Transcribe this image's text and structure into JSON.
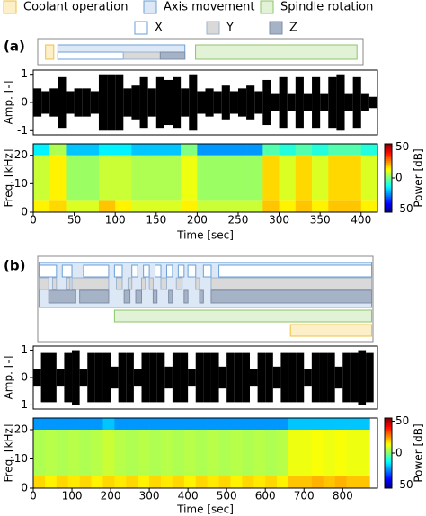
{
  "chart_data": {
    "type": "timeline-signal",
    "legend": [
      {
        "name": "Coolant operation",
        "color": "#fdf0c8",
        "border": "#f0c040",
        "text_color": "#c89a10"
      },
      {
        "name": "Axis movement",
        "color": "#dde8f6",
        "border": "#6a9fd8",
        "text_color": "#3a70c0"
      },
      {
        "name": "Spindle rotation",
        "color": "#e2f2d6",
        "border": "#8cc56a",
        "text_color": "#5a9a3a"
      },
      {
        "name": "X",
        "color": "#ffffff",
        "border": "#6a9fd8",
        "text_color": "#3a70c0"
      },
      {
        "name": "Y",
        "color": "#d9d9d9",
        "border": "#9fb3cc",
        "text_color": "#3a70c0"
      },
      {
        "name": "Z",
        "color": "#a6b2c6",
        "border": "#7f8fa8",
        "text_color": "#3a70c0"
      }
    ],
    "panels": [
      {
        "label": "(a)",
        "xlim": [
          0,
          420
        ],
        "xticks": [
          0,
          50,
          100,
          150,
          200,
          250,
          300,
          350,
          400
        ],
        "xlabel": "Time [sec]",
        "timeline": [
          [
            [
              15,
              25
            ]
          ],
          [
            [
              30,
              185
            ]
          ],
          [
            [
              198,
              395
            ]
          ],
          [
            [
              30,
              110
            ]
          ],
          [
            [
              110,
              155
            ]
          ],
          [
            [
              155,
              185
            ]
          ]
        ],
        "amplitude": {
          "ylabel": "Amp. [-]",
          "ylim": [
            -1.15,
            1.15
          ],
          "yticks": [
            -1,
            0,
            1
          ],
          "x": [
            0,
            10,
            20,
            30,
            40,
            50,
            60,
            70,
            80,
            90,
            100,
            110,
            120,
            130,
            140,
            150,
            160,
            170,
            180,
            190,
            200,
            210,
            220,
            230,
            240,
            250,
            260,
            270,
            280,
            290,
            300,
            310,
            320,
            330,
            340,
            350,
            360,
            370,
            380,
            390,
            400,
            410,
            420
          ],
          "values": [
            0.5,
            0.4,
            0.5,
            0.9,
            0.4,
            0.5,
            0.5,
            0.4,
            1,
            1,
            1,
            0.5,
            0.6,
            0.9,
            0.5,
            0.9,
            0.8,
            0.9,
            0.5,
            1,
            0.4,
            0.5,
            0.4,
            0.6,
            0.4,
            0.5,
            0.6,
            0.4,
            0.8,
            0.3,
            0.9,
            0.3,
            0.9,
            0.3,
            0.9,
            0.3,
            0.9,
            1,
            0.3,
            0.9,
            0.3,
            0.2,
            0.2
          ]
        },
        "spectrogram": {
          "ylabel": "Freq. [kHz]",
          "ylim": [
            0,
            24
          ],
          "yticks": [
            0,
            10,
            20
          ],
          "time_edges": [
            0,
            20,
            40,
            60,
            80,
            100,
            120,
            140,
            160,
            180,
            200,
            220,
            240,
            260,
            280,
            300,
            320,
            340,
            360,
            380,
            400,
            420
          ],
          "freq_edges": [
            0,
            4,
            20,
            24
          ],
          "power": [
            [
              15,
              8,
              -15
            ],
            [
              18,
              15,
              5
            ],
            [
              10,
              3,
              -20
            ],
            [
              10,
              3,
              -20
            ],
            [
              20,
              8,
              -15
            ],
            [
              15,
              8,
              -15
            ],
            [
              10,
              5,
              -20
            ],
            [
              10,
              5,
              -20
            ],
            [
              10,
              5,
              -20
            ],
            [
              15,
              12,
              0
            ],
            [
              8,
              3,
              -25
            ],
            [
              8,
              3,
              -25
            ],
            [
              8,
              3,
              -25
            ],
            [
              8,
              3,
              -25
            ],
            [
              20,
              18,
              -5
            ],
            [
              15,
              10,
              -10
            ],
            [
              20,
              18,
              -5
            ],
            [
              15,
              10,
              -10
            ],
            [
              20,
              18,
              -5
            ],
            [
              20,
              18,
              -5
            ],
            [
              15,
              10,
              -10
            ]
          ],
          "clim": [
            -55,
            55
          ],
          "cticks": [
            -50,
            0,
            50
          ],
          "clabel": "Power [dB]"
        }
      },
      {
        "label": "(b)",
        "xlim": [
          0,
          890
        ],
        "xticks": [
          0,
          100,
          200,
          300,
          400,
          500,
          600,
          700,
          800
        ],
        "xlabel": "Time [sec]",
        "timeline": [
          [
            [
              665,
              875
            ]
          ],
          [
            [
              15,
              875
            ]
          ],
          [
            [
              210,
              875
            ]
          ],
          [
            [
              15,
              60
            ],
            [
              75,
              100
            ],
            [
              130,
              195
            ],
            [
              210,
              230
            ],
            [
              255,
              270
            ],
            [
              285,
              300
            ],
            [
              315,
              330
            ],
            [
              345,
              360
            ],
            [
              375,
              390
            ],
            [
              400,
              420
            ],
            [
              440,
              460
            ],
            [
              480,
              875
            ]
          ],
          [
            [
              15,
              40
            ],
            [
              50,
              60
            ],
            [
              85,
              95
            ],
            [
              100,
              195
            ],
            [
              215,
              230
            ],
            [
              245,
              255
            ],
            [
              280,
              290
            ],
            [
              300,
              310
            ],
            [
              330,
              345
            ],
            [
              370,
              385
            ],
            [
              420,
              430
            ],
            [
              460,
              875
            ]
          ],
          [
            [
              40,
              110
            ],
            [
              120,
              195
            ],
            [
              235,
              250
            ],
            [
              265,
              280
            ],
            [
              310,
              320
            ],
            [
              350,
              360
            ],
            [
              390,
              400
            ],
            [
              430,
              440
            ],
            [
              460,
              875
            ]
          ]
        ],
        "amplitude": {
          "ylabel": "Amp. [-]",
          "ylim": [
            -1.15,
            1.15
          ],
          "yticks": [
            -1,
            0,
            1
          ],
          "x": [
            0,
            20,
            40,
            60,
            80,
            100,
            120,
            140,
            160,
            180,
            200,
            220,
            240,
            260,
            280,
            300,
            320,
            340,
            360,
            380,
            400,
            420,
            440,
            460,
            480,
            500,
            520,
            540,
            560,
            580,
            600,
            620,
            640,
            660,
            680,
            700,
            720,
            740,
            760,
            780,
            800,
            820,
            840,
            860
          ],
          "values": [
            0.3,
            0.9,
            0.9,
            0.3,
            0.9,
            1,
            0.3,
            0.9,
            0.9,
            0.9,
            0.4,
            0.9,
            0.9,
            0.3,
            0.9,
            0.9,
            0.9,
            0.4,
            0.9,
            0.9,
            0.3,
            0.9,
            0.9,
            0.9,
            0.4,
            0.9,
            0.9,
            0.9,
            0.3,
            0.9,
            0.9,
            0.4,
            0.9,
            0.9,
            0.9,
            0.3,
            0.9,
            0.9,
            0.9,
            0.4,
            0.9,
            0.9,
            1,
            0.9
          ]
        },
        "spectrogram": {
          "ylabel": "Freq. [kHz]",
          "ylim": [
            0,
            24
          ],
          "yticks": [
            0,
            10,
            20
          ],
          "time_edges": [
            0,
            30,
            60,
            90,
            120,
            150,
            180,
            210,
            240,
            270,
            300,
            330,
            360,
            390,
            420,
            450,
            480,
            510,
            540,
            570,
            600,
            630,
            660,
            690,
            720,
            750,
            780,
            810,
            840,
            870
          ],
          "freq_edges": [
            0,
            4,
            20,
            24
          ],
          "power": [
            [
              18,
              5,
              -25
            ],
            [
              15,
              6,
              -25
            ],
            [
              18,
              5,
              -25
            ],
            [
              16,
              6,
              -25
            ],
            [
              18,
              5,
              -25
            ],
            [
              15,
              6,
              -25
            ],
            [
              18,
              8,
              -20
            ],
            [
              16,
              6,
              -25
            ],
            [
              18,
              5,
              -25
            ],
            [
              15,
              6,
              -25
            ],
            [
              18,
              5,
              -25
            ],
            [
              16,
              6,
              -25
            ],
            [
              18,
              5,
              -25
            ],
            [
              15,
              6,
              -25
            ],
            [
              18,
              5,
              -25
            ],
            [
              16,
              6,
              -25
            ],
            [
              18,
              5,
              -25
            ],
            [
              15,
              6,
              -25
            ],
            [
              18,
              5,
              -25
            ],
            [
              16,
              6,
              -25
            ],
            [
              18,
              5,
              -25
            ],
            [
              15,
              6,
              -25
            ],
            [
              20,
              12,
              -20
            ],
            [
              20,
              12,
              -20
            ],
            [
              22,
              13,
              -20
            ],
            [
              20,
              12,
              -20
            ],
            [
              22,
              13,
              -20
            ],
            [
              20,
              12,
              -20
            ],
            [
              20,
              12,
              -20
            ]
          ],
          "clim": [
            -55,
            55
          ],
          "cticks": [
            -50,
            0,
            50
          ],
          "clabel": "Power [dB]"
        }
      }
    ]
  }
}
